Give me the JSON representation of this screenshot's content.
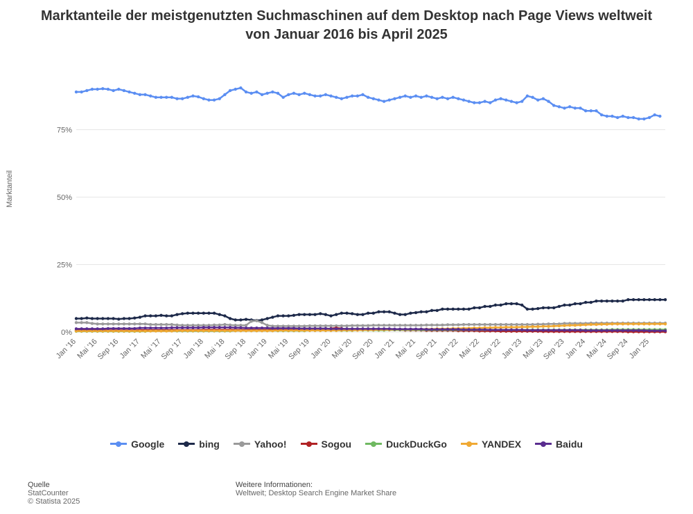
{
  "chart": {
    "type": "line",
    "title": "Marktanteile der meistgenutzten Suchmaschinen auf dem Desktop nach Page Views weltweit von Januar 2016 bis April 2025",
    "ylabel": "Marktanteil",
    "ylim": [
      0,
      100
    ],
    "yticks": [
      0,
      25,
      50,
      75
    ],
    "ytick_labels": [
      "0%",
      "25%",
      "50%",
      "75%"
    ],
    "background_color": "#ffffff",
    "grid_color": "#e5e5e5",
    "title_fontsize": 20,
    "label_fontsize": 11,
    "line_width": 2.5,
    "marker_radius": 2.2,
    "x_labels": [
      "Jan '16",
      "Mai '16",
      "Sep '16",
      "Jan '17",
      "Mai '17",
      "Sep '17",
      "Jan '18",
      "Mai '18",
      "Sep '18",
      "Jan '19",
      "Mai '19",
      "Sep '19",
      "Jan '20",
      "Mai '20",
      "Sep '20",
      "Jan '21",
      "Mai '21",
      "Sep '21",
      "Jan '22",
      "Mai '22",
      "Sep '22",
      "Jan '23",
      "Mai '23",
      "Sep '23",
      "Jan '24",
      "Mai '24",
      "Sep '24",
      "Jan '25"
    ],
    "x_label_step": 4,
    "n_points": 112,
    "series": [
      {
        "name": "Google",
        "color": "#5b8ef2",
        "values": [
          89,
          89,
          89.5,
          90,
          90,
          90.2,
          90,
          89.5,
          90,
          89.5,
          89,
          88.5,
          88,
          88,
          87.5,
          87,
          87,
          87,
          87,
          86.5,
          86.5,
          87,
          87.5,
          87.2,
          86.5,
          86,
          86,
          86.5,
          88,
          89.5,
          90,
          90.5,
          89,
          88.5,
          89,
          88,
          88.5,
          89,
          88.5,
          87,
          88,
          88.5,
          88,
          88.5,
          88,
          87.5,
          87.5,
          88,
          87.5,
          87,
          86.5,
          87,
          87.5,
          87.5,
          88,
          87,
          86.5,
          86,
          85.5,
          86,
          86.5,
          87,
          87.5,
          87,
          87.5,
          87,
          87.5,
          87,
          86.5,
          87,
          86.5,
          87,
          86.5,
          86,
          85.5,
          85,
          85,
          85.5,
          85,
          86,
          86.5,
          86,
          85.5,
          85,
          85.5,
          87.5,
          87,
          86,
          86.5,
          85.5,
          84,
          83.5,
          83,
          83.5,
          83,
          83,
          82,
          82,
          82,
          80.5,
          80,
          80,
          79.5,
          80,
          79.5,
          79.5,
          79,
          79,
          79.5,
          80.5,
          80
        ]
      },
      {
        "name": "bing",
        "color": "#1e2a4a",
        "values": [
          5,
          5,
          5.2,
          5,
          5,
          5,
          5,
          5,
          4.8,
          5,
          5,
          5.2,
          5.5,
          6,
          6,
          6,
          6.2,
          6,
          6,
          6.5,
          6.8,
          7,
          7,
          7,
          7,
          7,
          7,
          6.5,
          6,
          5,
          4.5,
          4.5,
          4.7,
          4.5,
          4.3,
          4.5,
          5,
          5.5,
          6,
          6,
          6,
          6.2,
          6.5,
          6.5,
          6.5,
          6.5,
          6.8,
          6.5,
          6,
          6.5,
          7,
          7,
          6.8,
          6.5,
          6.5,
          7,
          7,
          7.5,
          7.5,
          7.5,
          7,
          6.5,
          6.5,
          7,
          7.2,
          7.5,
          7.5,
          8,
          8,
          8.5,
          8.5,
          8.5,
          8.5,
          8.5,
          8.5,
          9,
          9,
          9.5,
          9.5,
          10,
          10,
          10.5,
          10.5,
          10.5,
          10,
          8.5,
          8.5,
          8.7,
          9,
          9,
          9,
          9.5,
          10,
          10,
          10.5,
          10.5,
          11,
          11,
          11.5,
          11.5,
          11.5,
          11.5,
          11.5,
          11.5,
          12,
          12,
          12,
          12,
          12,
          12,
          12,
          12
        ]
      },
      {
        "name": "Yahoo!",
        "color": "#9a9a9a",
        "values": [
          3.5,
          3.5,
          3.5,
          3.2,
          3,
          3,
          3,
          3,
          3,
          3,
          3,
          3,
          3,
          3,
          2.8,
          2.8,
          2.8,
          2.8,
          2.8,
          2.6,
          2.5,
          2.5,
          2.5,
          2.5,
          2.5,
          2.5,
          2.6,
          2.6,
          2.8,
          2.6,
          2.5,
          2.5,
          2.5,
          4,
          4.2,
          3.5,
          2.5,
          2.2,
          2.2,
          2.2,
          2.2,
          2.2,
          2.2,
          2.2,
          2.3,
          2.3,
          2.3,
          2.3,
          2.3,
          2.3,
          2.3,
          2.3,
          2.4,
          2.4,
          2.4,
          2.4,
          2.5,
          2.5,
          2.5,
          2.5,
          2.5,
          2.5,
          2.5,
          2.5,
          2.5,
          2.5,
          2.6,
          2.6,
          2.6,
          2.6,
          2.7,
          2.7,
          2.7,
          2.8,
          2.8,
          2.8,
          2.8,
          2.8,
          2.8,
          2.8,
          2.8,
          2.8,
          2.8,
          2.8,
          2.8,
          2.8,
          2.8,
          2.9,
          2.9,
          3,
          3,
          3,
          3.2,
          3.2,
          3.2,
          3.2,
          3.2,
          3.3,
          3.3,
          3.3,
          3.3,
          3.3,
          3.3,
          3.3,
          3.3,
          3.3,
          3.3,
          3.3,
          3.3,
          3.3,
          3.3,
          3.3
        ]
      },
      {
        "name": "Sogou",
        "color": "#b02224",
        "values": [
          0.6,
          0.6,
          0.6,
          0.6,
          0.6,
          0.6,
          0.6,
          0.6,
          0.6,
          0.6,
          0.6,
          0.6,
          0.7,
          0.7,
          0.7,
          0.7,
          0.7,
          0.7,
          0.7,
          0.7,
          0.7,
          0.7,
          0.7,
          0.7,
          0.8,
          0.8,
          0.8,
          0.8,
          0.8,
          0.8,
          0.8,
          0.8,
          0.8,
          0.8,
          0.8,
          0.8,
          0.8,
          0.8,
          0.8,
          0.8,
          0.8,
          0.8,
          0.8,
          0.9,
          0.9,
          0.9,
          0.9,
          0.9,
          1.3,
          1.5,
          1.3,
          1.0,
          0.9,
          0.9,
          0.9,
          0.9,
          0.9,
          0.9,
          0.9,
          0.8,
          0.8,
          0.8,
          0.7,
          0.7,
          0.7,
          0.7,
          0.6,
          0.6,
          0.6,
          0.6,
          0.6,
          0.6,
          0.5,
          0.5,
          0.5,
          0.5,
          0.4,
          0.4,
          0.4,
          0.4,
          0.3,
          0.3,
          0.3,
          0.3,
          0.3,
          0.3,
          0.3,
          0.3,
          0.2,
          0.2,
          0.2,
          0.2,
          0.2,
          0.2,
          0.2,
          0.2,
          0.2,
          0.2,
          0.2,
          0.2,
          0.2,
          0.2,
          0.2,
          0.2,
          0.1,
          0.1,
          0.1,
          0.1,
          0.1,
          0.1,
          0.1,
          0.1
        ]
      },
      {
        "name": "DuckDuckGo",
        "color": "#6fb961",
        "values": [
          0.3,
          0.3,
          0.3,
          0.3,
          0.3,
          0.3,
          0.3,
          0.3,
          0.3,
          0.3,
          0.3,
          0.3,
          0.3,
          0.3,
          0.4,
          0.4,
          0.4,
          0.4,
          0.4,
          0.4,
          0.4,
          0.4,
          0.4,
          0.4,
          0.4,
          0.4,
          0.4,
          0.4,
          0.4,
          0.4,
          0.5,
          0.5,
          0.5,
          0.5,
          0.5,
          0.5,
          0.5,
          0.5,
          0.5,
          0.5,
          0.5,
          0.5,
          0.5,
          0.5,
          0.6,
          0.6,
          0.6,
          0.6,
          0.6,
          0.6,
          0.6,
          0.6,
          0.6,
          0.7,
          0.7,
          0.7,
          0.7,
          0.7,
          0.7,
          0.8,
          0.8,
          0.8,
          0.8,
          0.8,
          0.8,
          0.8,
          0.8,
          0.8,
          0.8,
          0.8,
          0.8,
          0.8,
          0.8,
          0.8,
          0.8,
          0.8,
          0.8,
          0.8,
          0.8,
          0.8,
          0.8,
          0.8,
          0.8,
          0.8,
          0.8,
          0.8,
          0.8,
          0.8,
          0.8,
          0.8,
          0.8,
          0.8,
          0.8,
          0.8,
          0.8,
          0.8,
          0.8,
          0.8,
          0.8,
          0.8,
          0.8,
          0.9,
          0.9,
          0.9,
          0.9,
          0.9,
          0.9,
          0.9,
          0.9,
          0.9,
          0.9,
          0.9
        ]
      },
      {
        "name": "YANDEX",
        "color": "#f0a933",
        "values": [
          0.4,
          0.4,
          0.4,
          0.4,
          0.4,
          0.4,
          0.4,
          0.4,
          0.4,
          0.4,
          0.4,
          0.4,
          0.4,
          0.4,
          0.4,
          0.4,
          0.4,
          0.4,
          0.4,
          0.5,
          0.5,
          0.5,
          0.5,
          0.5,
          0.5,
          0.5,
          0.5,
          0.5,
          0.5,
          0.5,
          0.5,
          0.5,
          0.5,
          0.5,
          0.5,
          0.5,
          0.5,
          0.5,
          0.6,
          0.6,
          0.6,
          0.6,
          0.6,
          0.6,
          0.6,
          0.6,
          0.6,
          0.6,
          0.6,
          0.6,
          0.7,
          0.7,
          0.7,
          0.7,
          0.8,
          0.8,
          0.8,
          0.9,
          0.9,
          0.9,
          1.0,
          1.0,
          1.0,
          1.0,
          1.0,
          1.1,
          1.1,
          1.1,
          1.2,
          1.2,
          1.2,
          1.3,
          1.3,
          1.4,
          1.4,
          1.5,
          1.5,
          1.6,
          1.6,
          1.7,
          1.7,
          1.8,
          1.8,
          1.8,
          1.9,
          1.9,
          2.0,
          2.0,
          2.1,
          2.1,
          2.2,
          2.3,
          2.4,
          2.5,
          2.5,
          2.6,
          2.7,
          2.8,
          2.8,
          2.9,
          2.9,
          3.0,
          3.0,
          3.0,
          3.0,
          3.0,
          3.0,
          3.0,
          3.0,
          3.0,
          3.0,
          3.0
        ]
      },
      {
        "name": "Baidu",
        "color": "#5a2d8f",
        "values": [
          1.2,
          1.2,
          1.2,
          1.2,
          1.2,
          1.2,
          1.3,
          1.3,
          1.3,
          1.3,
          1.3,
          1.3,
          1.5,
          1.5,
          1.5,
          1.5,
          1.5,
          1.5,
          1.6,
          1.6,
          1.6,
          1.6,
          1.6,
          1.6,
          1.7,
          1.7,
          1.7,
          1.7,
          1.7,
          1.7,
          1.6,
          1.6,
          1.5,
          1.5,
          1.5,
          1.5,
          1.5,
          1.4,
          1.4,
          1.4,
          1.4,
          1.4,
          1.3,
          1.3,
          1.3,
          1.3,
          1.3,
          1.3,
          1.2,
          1.2,
          1.2,
          1.2,
          1.2,
          1.2,
          1.2,
          1.2,
          1.2,
          1.2,
          1.2,
          1.2,
          1.1,
          1.1,
          1.1,
          1.1,
          1.1,
          1.1,
          1.0,
          1.0,
          1.0,
          1.0,
          1.0,
          1.0,
          1.0,
          0.9,
          0.9,
          0.9,
          0.9,
          0.9,
          0.8,
          0.8,
          0.8,
          0.8,
          0.8,
          0.8,
          0.8,
          0.7,
          0.7,
          0.7,
          0.7,
          0.7,
          0.7,
          0.7,
          0.7,
          0.7,
          0.7,
          0.7,
          0.6,
          0.6,
          0.6,
          0.6,
          0.6,
          0.6,
          0.6,
          0.6,
          0.6,
          0.6,
          0.6,
          0.6,
          0.5,
          0.5,
          0.5,
          0.5
        ]
      }
    ]
  },
  "footer": {
    "source_label": "Quelle",
    "source_value": "StatCounter",
    "copyright": "© Statista 2025",
    "info_label": "Weitere Informationen:",
    "info_value": "Weltweit; Desktop Search Engine Market Share"
  }
}
